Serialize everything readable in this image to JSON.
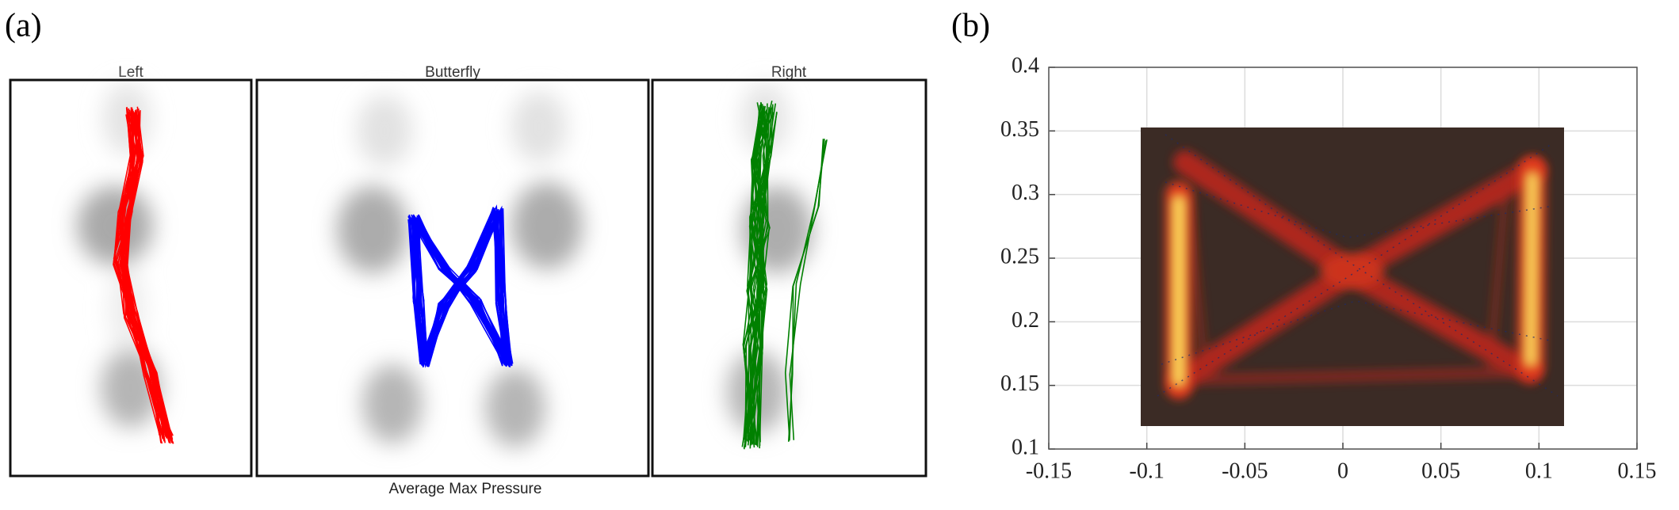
{
  "chart_data": [
    {
      "type": "trajectory",
      "label": "(a)",
      "panel_titles": [
        "Left",
        "Butterfly",
        "Right"
      ],
      "caption": "Average Max Pressure"
    },
    {
      "type": "heatmap",
      "label": "(b)",
      "xlim": [
        -0.15,
        0.15
      ],
      "ylim": [
        0.1,
        0.4
      ],
      "xticks": [
        -0.15,
        -0.1,
        -0.05,
        0,
        0.05,
        0.1,
        0.15
      ],
      "yticks": [
        0.1,
        0.15,
        0.2,
        0.25,
        0.3,
        0.35,
        0.4
      ],
      "grid": true
    }
  ]
}
